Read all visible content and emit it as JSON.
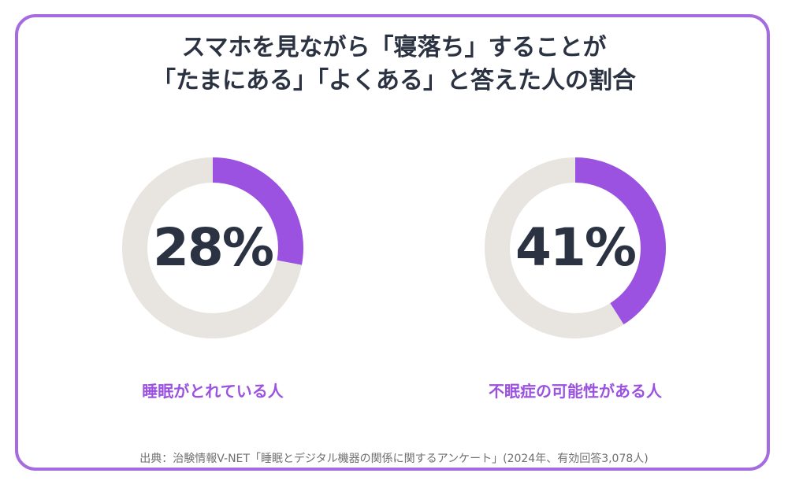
{
  "title_line1": "スマホを見ながら「寝落ち」することが",
  "title_line2": "「たまにある」「よくある」と答えた人の割合",
  "source": "出典：治験情報V-NET「睡眠とデジタル機器の関係に関するアンケート」(2024年、有効回答3,078人)",
  "colors": {
    "accent": "#9b52e0",
    "track": "#e8e4df",
    "text": "#2b3242",
    "border": "#a56be0"
  },
  "chart_data": [
    {
      "type": "pie",
      "value": 28,
      "value_label": "28%",
      "category": "睡眠がとれている人"
    },
    {
      "type": "pie",
      "value": 41,
      "value_label": "41%",
      "category": "不眠症の可能性がある人"
    }
  ]
}
